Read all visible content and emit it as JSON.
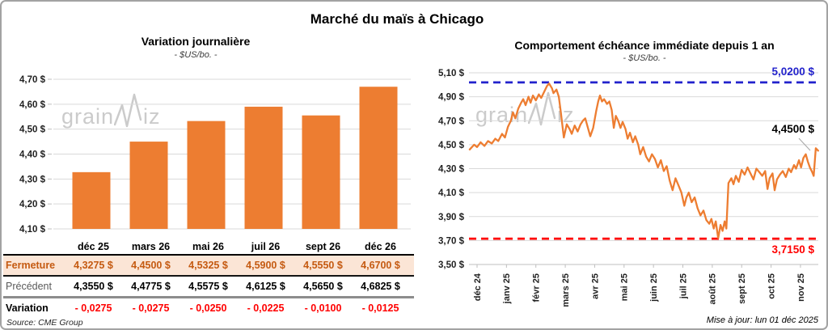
{
  "frame": {
    "title": "Marché du maïs à Chicago"
  },
  "watermark": {
    "prefix": "grain",
    "suffix": "iz"
  },
  "footer": {
    "source": "Source: CME Group",
    "updated": "Mise à jour: lun 01 déc 2025"
  },
  "colors": {
    "orange": "#ED7D31",
    "peach_bg": "#FBE5D6",
    "brown_text": "#C55A11",
    "blue_ref": "#2323CC",
    "red_ref": "#FF0000",
    "grid": "#D9D9D9",
    "axis": "#BFBFBF",
    "tick_text": "#1f1f1f",
    "watermark": "#CBCBCB"
  },
  "table": {
    "columns": [
      "déc 25",
      "mars 26",
      "mai 26",
      "juil 26",
      "sept 26",
      "déc 26"
    ],
    "rows": [
      {
        "key": "fermeture",
        "label": "Fermeture",
        "values": [
          "4,3275 $",
          "4,4500 $",
          "4,5325 $",
          "4,5900 $",
          "4,5550 $",
          "4,6700 $"
        ]
      },
      {
        "key": "precedent",
        "label": "Précédent",
        "values": [
          "4,3550 $",
          "4,4775 $",
          "4,5575 $",
          "4,6125 $",
          "4,5650 $",
          "4,6825 $"
        ]
      },
      {
        "key": "variation",
        "label": "Variation",
        "values": [
          "- 0,0275",
          "- 0,0275",
          "- 0,0250",
          "- 0,0225",
          "- 0,0100",
          "- 0,0125"
        ]
      }
    ]
  },
  "chart_data": [
    {
      "type": "bar",
      "title": "Variation journalière",
      "subtitle": "- $US/bo. -",
      "categories": [
        "déc 25",
        "mars 26",
        "mai 26",
        "juil 26",
        "sept 26",
        "déc 26"
      ],
      "values": [
        4.3275,
        4.45,
        4.5325,
        4.59,
        4.555,
        4.67
      ],
      "ylim": [
        4.1,
        4.7
      ],
      "ytick_step": 0.1,
      "grid": true,
      "bar_color": "#ED7D31",
      "unit": "$US/bo."
    },
    {
      "type": "line",
      "title": "Comportement échéance immédiate depuis 1 an",
      "subtitle": "- $US/bo. -",
      "x_ticks": [
        "déc 24",
        "janv 25",
        "févr 25",
        "mars 25",
        "avr 25",
        "mai 25",
        "juin 25",
        "juil 25",
        "août 25",
        "sept 25",
        "oct 25",
        "nov 25"
      ],
      "ylim": [
        3.5,
        5.1
      ],
      "ytick_step": 0.2,
      "grid": true,
      "line_color": "#ED7D31",
      "unit": "$US/bo.",
      "ref_lines": [
        {
          "value": 5.02,
          "label": "5,0200 $",
          "color": "#2323CC",
          "style": "dashed"
        },
        {
          "value": 3.715,
          "label": "3,7150 $",
          "color": "#FF0000",
          "style": "dashed"
        }
      ],
      "last_point": {
        "value": 4.45,
        "label": "4,4500 $"
      },
      "series": [
        {
          "name": "échéance immédiate",
          "points": [
            [
              -0.25,
              4.46
            ],
            [
              -0.1,
              4.5
            ],
            [
              0,
              4.48
            ],
            [
              0.12,
              4.52
            ],
            [
              0.25,
              4.49
            ],
            [
              0.37,
              4.53
            ],
            [
              0.5,
              4.51
            ],
            [
              0.62,
              4.55
            ],
            [
              0.72,
              4.53
            ],
            [
              0.85,
              4.59
            ],
            [
              0.95,
              4.56
            ],
            [
              1.05,
              4.65
            ],
            [
              1.15,
              4.7
            ],
            [
              1.22,
              4.77
            ],
            [
              1.3,
              4.72
            ],
            [
              1.4,
              4.8
            ],
            [
              1.5,
              4.85
            ],
            [
              1.57,
              4.88
            ],
            [
              1.65,
              4.83
            ],
            [
              1.75,
              4.9
            ],
            [
              1.82,
              4.85
            ],
            [
              1.9,
              4.91
            ],
            [
              2.0,
              4.87
            ],
            [
              2.1,
              4.92
            ],
            [
              2.18,
              4.89
            ],
            [
              2.3,
              4.95
            ],
            [
              2.38,
              4.99
            ],
            [
              2.45,
              5.01
            ],
            [
              2.55,
              4.97
            ],
            [
              2.6,
              4.93
            ],
            [
              2.7,
              4.96
            ],
            [
              2.78,
              4.9
            ],
            [
              2.85,
              4.77
            ],
            [
              2.95,
              4.56
            ],
            [
              3.05,
              4.67
            ],
            [
              3.15,
              4.63
            ],
            [
              3.22,
              4.59
            ],
            [
              3.32,
              4.66
            ],
            [
              3.42,
              4.61
            ],
            [
              3.52,
              4.67
            ],
            [
              3.6,
              4.7
            ],
            [
              3.68,
              4.72
            ],
            [
              3.76,
              4.65
            ],
            [
              3.85,
              4.57
            ],
            [
              3.95,
              4.64
            ],
            [
              4.05,
              4.78
            ],
            [
              4.12,
              4.86
            ],
            [
              4.18,
              4.91
            ],
            [
              4.25,
              4.86
            ],
            [
              4.32,
              4.88
            ],
            [
              4.42,
              4.84
            ],
            [
              4.5,
              4.86
            ],
            [
              4.58,
              4.79
            ],
            [
              4.65,
              4.64
            ],
            [
              4.72,
              4.74
            ],
            [
              4.8,
              4.7
            ],
            [
              4.88,
              4.64
            ],
            [
              4.95,
              4.69
            ],
            [
              5.05,
              4.63
            ],
            [
              5.12,
              4.55
            ],
            [
              5.2,
              4.6
            ],
            [
              5.3,
              4.52
            ],
            [
              5.38,
              4.57
            ],
            [
              5.48,
              4.5
            ],
            [
              5.55,
              4.42
            ],
            [
              5.65,
              4.48
            ],
            [
              5.75,
              4.4
            ],
            [
              5.85,
              4.36
            ],
            [
              5.95,
              4.42
            ],
            [
              6.05,
              4.38
            ],
            [
              6.15,
              4.31
            ],
            [
              6.25,
              4.37
            ],
            [
              6.35,
              4.28
            ],
            [
              6.45,
              4.32
            ],
            [
              6.55,
              4.2
            ],
            [
              6.65,
              4.12
            ],
            [
              6.75,
              4.22
            ],
            [
              6.85,
              4.16
            ],
            [
              6.95,
              4.1
            ],
            [
              7.05,
              3.99
            ],
            [
              7.12,
              4.06
            ],
            [
              7.2,
              4.1
            ],
            [
              7.3,
              4.02
            ],
            [
              7.4,
              4.06
            ],
            [
              7.5,
              3.97
            ],
            [
              7.6,
              3.91
            ],
            [
              7.7,
              3.95
            ],
            [
              7.8,
              3.87
            ],
            [
              7.9,
              3.84
            ],
            [
              7.97,
              3.88
            ],
            [
              8.05,
              3.8
            ],
            [
              8.12,
              3.86
            ],
            [
              8.2,
              3.72
            ],
            [
              8.28,
              3.83
            ],
            [
              8.35,
              3.78
            ],
            [
              8.42,
              3.86
            ],
            [
              8.48,
              3.8
            ],
            [
              8.55,
              4.18
            ],
            [
              8.65,
              4.22
            ],
            [
              8.72,
              4.17
            ],
            [
              8.8,
              4.24
            ],
            [
              8.9,
              4.19
            ],
            [
              9.0,
              4.29
            ],
            [
              9.1,
              4.25
            ],
            [
              9.2,
              4.31
            ],
            [
              9.3,
              4.26
            ],
            [
              9.4,
              4.21
            ],
            [
              9.5,
              4.3
            ],
            [
              9.6,
              4.27
            ],
            [
              9.7,
              4.24
            ],
            [
              9.8,
              4.28
            ],
            [
              9.88,
              4.13
            ],
            [
              9.95,
              4.22
            ],
            [
              10.05,
              4.26
            ],
            [
              10.12,
              4.12
            ],
            [
              10.2,
              4.21
            ],
            [
              10.3,
              4.25
            ],
            [
              10.4,
              4.28
            ],
            [
              10.5,
              4.23
            ],
            [
              10.6,
              4.3
            ],
            [
              10.68,
              4.27
            ],
            [
              10.78,
              4.33
            ],
            [
              10.85,
              4.3
            ],
            [
              10.95,
              4.37
            ],
            [
              11.02,
              4.31
            ],
            [
              11.1,
              4.39
            ],
            [
              11.18,
              4.42
            ],
            [
              11.25,
              4.36
            ],
            [
              11.32,
              4.31
            ],
            [
              11.4,
              4.27
            ],
            [
              11.45,
              4.24
            ],
            [
              11.52,
              4.47
            ],
            [
              11.6,
              4.45
            ]
          ]
        }
      ]
    }
  ]
}
